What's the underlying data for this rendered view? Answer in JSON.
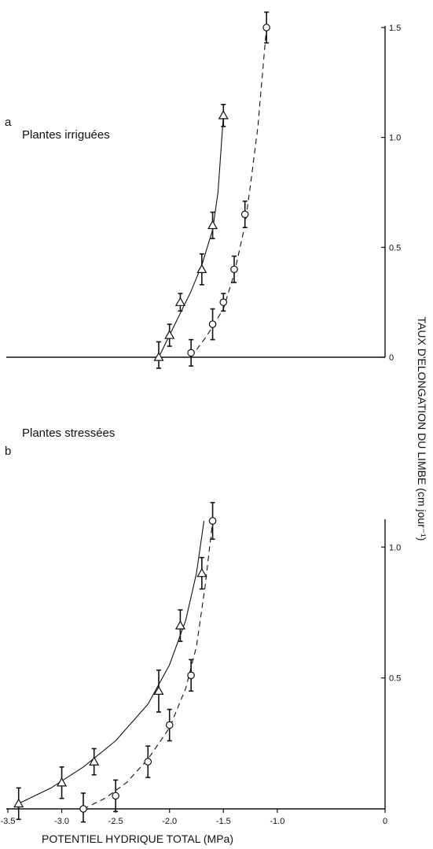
{
  "chart_data": [
    {
      "type": "scatter",
      "panel_label": "a",
      "title": "Plantes irriguées",
      "xlim": [
        -3.5,
        0
      ],
      "ylim": [
        0,
        1.5
      ],
      "y_ticks": [
        "0",
        "0.5",
        "1.0",
        "1.5"
      ],
      "y_tick_values": [
        0,
        0.5,
        1.0,
        1.5
      ],
      "series": [
        {
          "marker": "triangle",
          "line_style": "solid",
          "points": [
            {
              "x": -2.1,
              "y": 0.0,
              "err": 0.07
            },
            {
              "x": -2.0,
              "y": 0.1,
              "err": 0.05
            },
            {
              "x": -1.9,
              "y": 0.25,
              "err": 0.04
            },
            {
              "x": -1.7,
              "y": 0.4,
              "err": 0.07
            },
            {
              "x": -1.6,
              "y": 0.6,
              "err": 0.06
            },
            {
              "x": -1.5,
              "y": 1.1,
              "err": 0.05
            }
          ],
          "curve": [
            [
              -2.1,
              0.0
            ],
            [
              -2.0,
              0.1
            ],
            [
              -1.9,
              0.2
            ],
            [
              -1.8,
              0.3
            ],
            [
              -1.7,
              0.42
            ],
            [
              -1.6,
              0.58
            ],
            [
              -1.55,
              0.75
            ],
            [
              -1.5,
              1.1
            ]
          ]
        },
        {
          "marker": "circle",
          "line_style": "dashed",
          "points": [
            {
              "x": -1.8,
              "y": 0.02,
              "err": 0.06
            },
            {
              "x": -1.6,
              "y": 0.15,
              "err": 0.07
            },
            {
              "x": -1.5,
              "y": 0.25,
              "err": 0.04
            },
            {
              "x": -1.4,
              "y": 0.4,
              "err": 0.06
            },
            {
              "x": -1.3,
              "y": 0.65,
              "err": 0.06
            },
            {
              "x": -1.1,
              "y": 1.5,
              "err": 0.07
            }
          ],
          "curve": [
            [
              -1.8,
              0.0
            ],
            [
              -1.65,
              0.1
            ],
            [
              -1.5,
              0.22
            ],
            [
              -1.4,
              0.38
            ],
            [
              -1.3,
              0.6
            ],
            [
              -1.25,
              0.78
            ],
            [
              -1.18,
              1.05
            ],
            [
              -1.1,
              1.5
            ]
          ]
        }
      ]
    },
    {
      "type": "scatter",
      "panel_label": "b",
      "title": "Plantes stressées",
      "xlim": [
        -3.5,
        0
      ],
      "ylim": [
        0,
        1.1
      ],
      "x_ticks": [
        "-3.5",
        "-3.0",
        "-2.5",
        "-2.0",
        "-1.5",
        "-1.0",
        "0"
      ],
      "x_tick_values": [
        -3.5,
        -3.0,
        -2.5,
        -2.0,
        -1.5,
        -1.0,
        0
      ],
      "y_ticks": [
        "0.5",
        "1.0"
      ],
      "y_tick_values": [
        0.5,
        1.0
      ],
      "xlabel": "POTENTIEL HYDRIQUE TOTAL (MPa)",
      "series": [
        {
          "marker": "triangle",
          "line_style": "solid",
          "points": [
            {
              "x": -3.4,
              "y": 0.02,
              "err": 0.06
            },
            {
              "x": -3.0,
              "y": 0.1,
              "err": 0.06
            },
            {
              "x": -2.7,
              "y": 0.18,
              "err": 0.05
            },
            {
              "x": -2.1,
              "y": 0.45,
              "err": 0.08
            },
            {
              "x": -1.9,
              "y": 0.7,
              "err": 0.06
            },
            {
              "x": -1.7,
              "y": 0.9,
              "err": 0.06
            }
          ],
          "curve": [
            [
              -3.4,
              0.02
            ],
            [
              -3.1,
              0.08
            ],
            [
              -2.8,
              0.16
            ],
            [
              -2.5,
              0.26
            ],
            [
              -2.2,
              0.4
            ],
            [
              -2.0,
              0.55
            ],
            [
              -1.85,
              0.72
            ],
            [
              -1.75,
              0.9
            ],
            [
              -1.68,
              1.1
            ]
          ]
        },
        {
          "marker": "circle",
          "line_style": "dashed",
          "points": [
            {
              "x": -2.8,
              "y": 0.0,
              "err": 0.06
            },
            {
              "x": -2.5,
              "y": 0.05,
              "err": 0.06
            },
            {
              "x": -2.2,
              "y": 0.18,
              "err": 0.06
            },
            {
              "x": -2.0,
              "y": 0.32,
              "err": 0.06
            },
            {
              "x": -1.8,
              "y": 0.51,
              "err": 0.06
            },
            {
              "x": -1.6,
              "y": 1.1,
              "err": 0.07
            }
          ],
          "curve": [
            [
              -2.8,
              0.0
            ],
            [
              -2.6,
              0.04
            ],
            [
              -2.4,
              0.1
            ],
            [
              -2.2,
              0.19
            ],
            [
              -2.0,
              0.31
            ],
            [
              -1.85,
              0.46
            ],
            [
              -1.75,
              0.62
            ],
            [
              -1.67,
              0.85
            ],
            [
              -1.6,
              1.1
            ]
          ]
        }
      ]
    }
  ],
  "ylabel": "TAUX D'ELONGATION DU LIMBE (cm jour⁻¹)"
}
